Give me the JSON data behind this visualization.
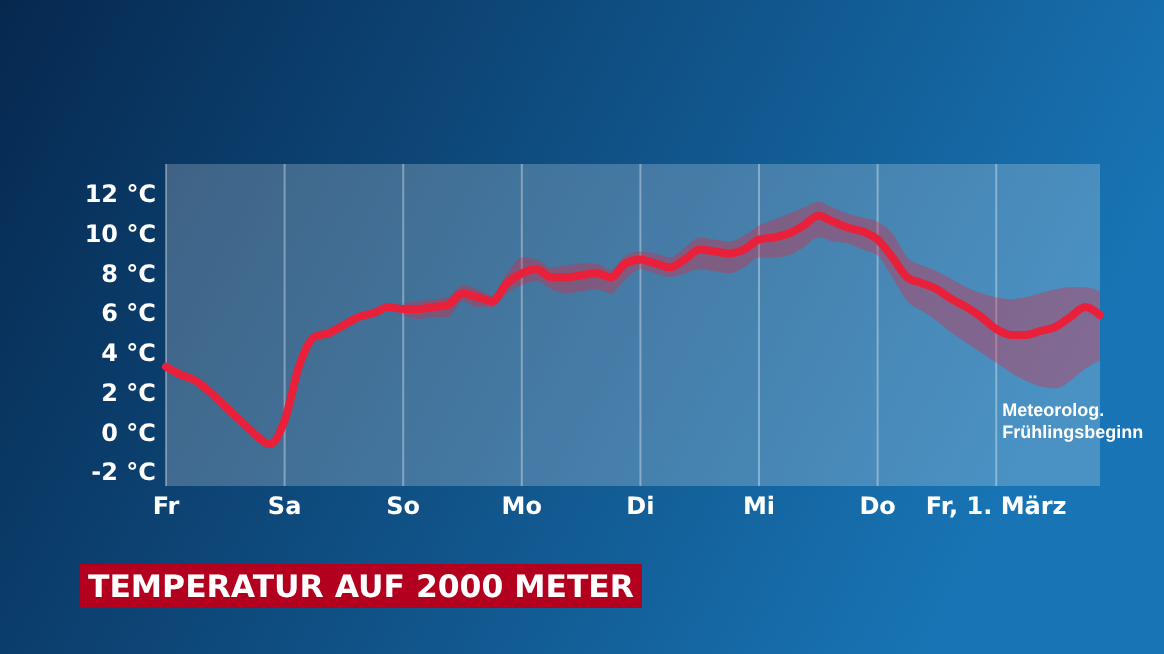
{
  "chart_data": {
    "type": "line",
    "title": "TEMPERATUR AUF 2000 METER",
    "categories": [
      "Fr",
      null,
      null,
      null,
      null,
      null,
      null,
      null,
      "Sa",
      null,
      null,
      null,
      null,
      null,
      null,
      null,
      "So",
      null,
      null,
      null,
      null,
      null,
      null,
      null,
      "Mo",
      null,
      null,
      null,
      null,
      null,
      null,
      null,
      "Di",
      null,
      null,
      null,
      null,
      null,
      null,
      null,
      "Mi",
      null,
      null,
      null,
      null,
      null,
      null,
      null,
      "Do",
      null,
      null,
      null,
      null,
      null,
      null,
      null,
      "Fr, 1. März",
      null,
      null,
      null,
      null,
      null,
      null,
      null
    ],
    "series": [
      {
        "color": "#e8203a",
        "values": [
          3.3,
          2.9,
          2.6,
          2.0,
          1.3,
          0.6,
          -0.1,
          -0.6,
          0.6,
          3.4,
          4.8,
          5.0,
          5.4,
          5.8,
          6.0,
          6.3,
          6.2,
          6.2,
          6.3,
          6.4,
          7.0,
          6.8,
          6.6,
          7.5,
          8.0,
          8.2,
          7.8,
          7.8,
          7.9,
          8.0,
          7.8,
          8.5,
          8.7,
          8.5,
          8.3,
          8.7,
          9.2,
          9.1,
          9.0,
          9.2,
          9.7,
          9.8,
          10.0,
          10.4,
          10.9,
          10.6,
          10.3,
          10.1,
          9.7,
          8.8,
          7.8,
          7.5,
          7.2,
          6.7,
          6.3,
          5.8,
          5.2,
          4.9,
          4.9,
          5.1,
          5.3,
          5.8,
          6.3,
          5.9
        ],
        "lower": [
          null,
          null,
          null,
          null,
          null,
          null,
          null,
          null,
          null,
          null,
          null,
          null,
          null,
          null,
          null,
          null,
          5.9,
          5.7,
          5.8,
          5.8,
          6.6,
          6.3,
          6.3,
          7.0,
          7.4,
          7.6,
          7.2,
          7.0,
          7.1,
          7.2,
          7.0,
          7.7,
          8.2,
          8.0,
          7.8,
          8.0,
          8.2,
          8.1,
          8.0,
          8.3,
          8.8,
          8.8,
          8.9,
          9.3,
          9.8,
          9.6,
          9.5,
          9.2,
          8.9,
          7.8,
          6.6,
          6.1,
          5.6,
          5.0,
          4.5,
          4.0,
          3.5,
          3.0,
          2.6,
          2.3,
          2.2,
          2.6,
          3.2,
          3.6
        ],
        "upper": [
          null,
          null,
          null,
          null,
          null,
          null,
          null,
          null,
          null,
          null,
          null,
          null,
          null,
          null,
          null,
          null,
          6.5,
          6.6,
          6.7,
          6.8,
          7.4,
          7.2,
          6.9,
          8.0,
          8.8,
          8.7,
          8.3,
          8.4,
          8.5,
          8.5,
          8.2,
          8.9,
          9.1,
          9.0,
          8.8,
          9.3,
          9.8,
          9.7,
          9.6,
          9.9,
          10.4,
          10.7,
          11.0,
          11.3,
          11.6,
          11.3,
          11.0,
          10.8,
          10.6,
          10.0,
          8.8,
          8.4,
          8.1,
          7.7,
          7.3,
          7.0,
          6.8,
          6.7,
          6.8,
          7.0,
          7.2,
          7.3,
          7.3,
          7.1
        ]
      }
    ],
    "ylim": [
      -2.7,
      13.5
    ],
    "yticks": [
      {
        "value": -2,
        "label": "-2 °C"
      },
      {
        "value": 0,
        "label": "0 °C"
      },
      {
        "value": 2,
        "label": "2 °C"
      },
      {
        "value": 4,
        "label": "4 °C"
      },
      {
        "value": 6,
        "label": "6 °C"
      },
      {
        "value": 8,
        "label": "8 °C"
      },
      {
        "value": 10,
        "label": "10 °C"
      },
      {
        "value": 12,
        "label": "12 °C"
      }
    ],
    "grid": "x",
    "line_style": "solid",
    "annotations": [
      "Meteorolog.\nFrühlingsbeginn"
    ]
  }
}
